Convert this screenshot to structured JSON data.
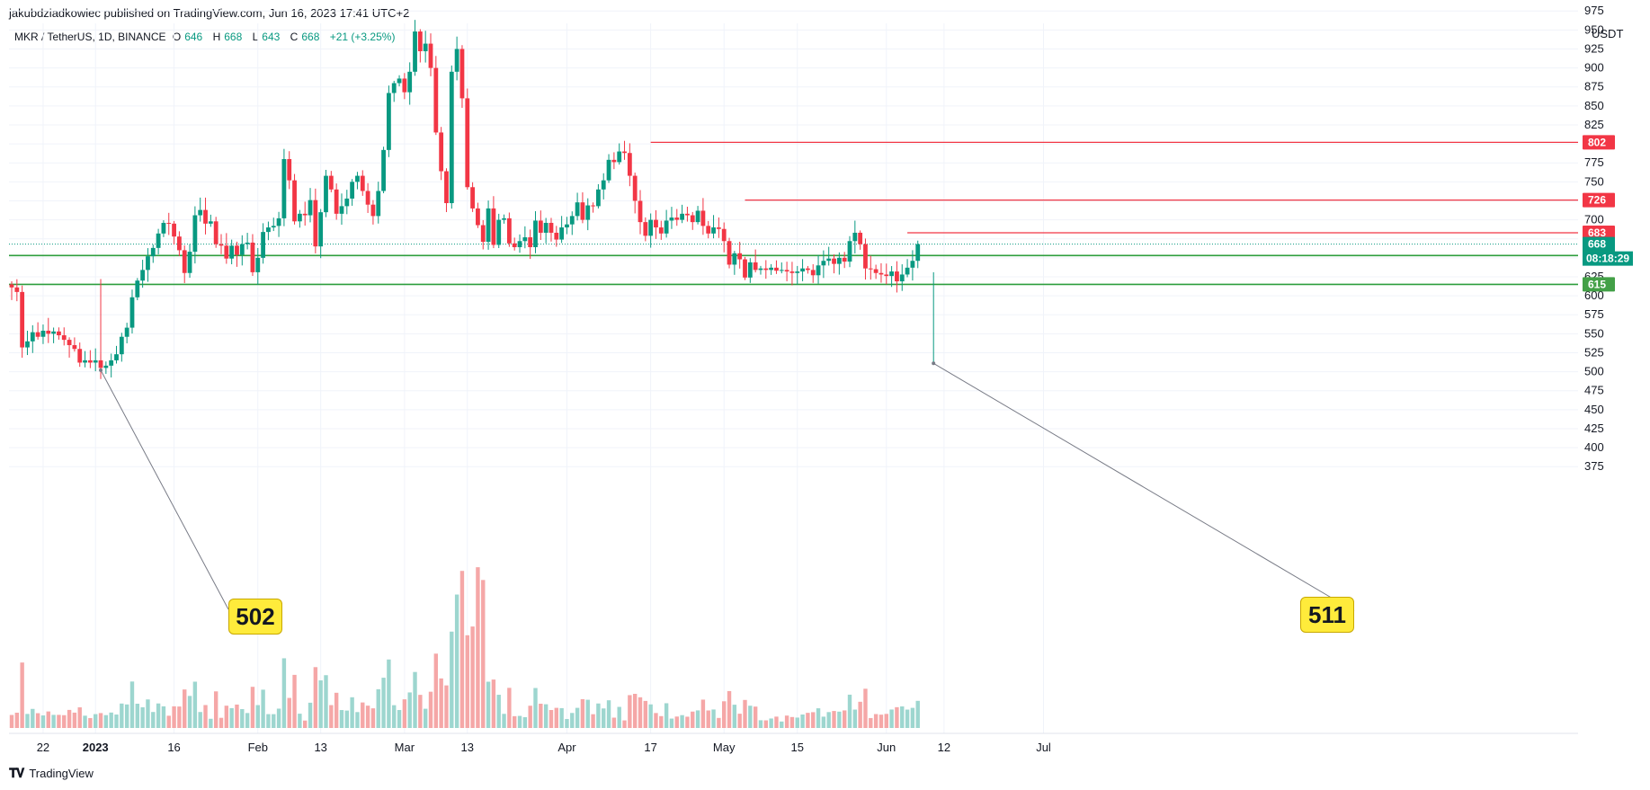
{
  "header": {
    "published_text": "jakubdziadkowiec published on TradingView.com, Jun 16, 2023 17:41 UTC+2"
  },
  "legend": {
    "symbol": "MKR / TetherUS, 1D, BINANCE",
    "open_label": "O",
    "open": "646",
    "high_label": "H",
    "high": "668",
    "low_label": "L",
    "low": "643",
    "close_label": "C",
    "close": "668",
    "change": "+21 (+3.25%)"
  },
  "footer": {
    "brand": "TradingView"
  },
  "annotations": {
    "low_left": "502",
    "low_right": "511"
  },
  "colors": {
    "up": "#089981",
    "down": "#f23645",
    "volume_up": "#9dd6cf",
    "volume_down": "#f5a7a7",
    "support": "#2e9e3e",
    "resistance": "#f23645",
    "callout": "#ffeb3b"
  },
  "chart_data": {
    "type": "candlestick",
    "symbol": "MKR / TetherUS",
    "interval": "1D",
    "exchange": "BINANCE",
    "currency_label": "USDT",
    "ylim": [
      352,
      986
    ],
    "y_ticks": [
      375,
      400,
      425,
      450,
      475,
      500,
      525,
      550,
      575,
      600,
      625,
      650,
      675,
      700,
      725,
      750,
      775,
      800,
      825,
      850,
      875,
      900,
      925,
      950,
      975
    ],
    "x_ticks": [
      {
        "date": "2022-12-22",
        "label": "22"
      },
      {
        "date": "2023-01-01",
        "label": "2023"
      },
      {
        "date": "2023-01-16",
        "label": "16"
      },
      {
        "date": "2023-02-01",
        "label": "Feb"
      },
      {
        "date": "2023-02-13",
        "label": "13"
      },
      {
        "date": "2023-03-01",
        "label": "Mar"
      },
      {
        "date": "2023-03-13",
        "label": "13"
      },
      {
        "date": "2023-04-01",
        "label": "Apr"
      },
      {
        "date": "2023-04-17",
        "label": "17"
      },
      {
        "date": "2023-05-01",
        "label": "May"
      },
      {
        "date": "2023-05-15",
        "label": "15"
      },
      {
        "date": "2023-06-01",
        "label": "Jun"
      },
      {
        "date": "2023-06-12",
        "label": "12"
      },
      {
        "date": "2023-07-01",
        "label": "Jul"
      }
    ],
    "first_date": "2022-12-16",
    "closes": [
      611,
      605,
      532,
      540,
      552,
      546,
      554,
      550,
      553,
      548,
      542,
      535,
      530,
      512,
      515,
      512,
      515,
      505,
      508,
      515,
      523,
      546,
      558,
      598,
      620,
      634,
      652,
      663,
      682,
      696,
      695,
      678,
      660,
      630,
      658,
      706,
      713,
      695,
      698,
      668,
      666,
      649,
      666,
      654,
      668,
      670,
      631,
      650,
      684,
      690,
      692,
      702,
      780,
      752,
      698,
      708,
      706,
      726,
      665,
      710,
      758,
      740,
      708,
      718,
      728,
      750,
      758,
      738,
      720,
      705,
      738,
      792,
      867,
      880,
      886,
      868,
      895,
      948,
      922,
      932,
      900,
      815,
      764,
      722,
      895,
      925,
      860,
      743,
      715,
      693,
      671,
      715,
      667,
      700,
      702,
      669,
      664,
      672,
      677,
      664,
      699,
      683,
      696,
      683,
      674,
      690,
      694,
      705,
      723,
      700,
      719,
      718,
      740,
      752,
      779,
      776,
      790,
      788,
      758,
      725,
      697,
      679,
      700,
      690,
      682,
      699,
      703,
      700,
      708,
      706,
      697,
      712,
      692,
      682,
      690,
      688,
      672,
      641,
      656,
      648,
      624,
      644,
      634,
      636,
      634,
      637,
      633,
      634,
      632,
      630,
      632,
      636,
      634,
      627,
      640,
      646,
      649,
      642,
      650,
      645,
      672,
      683,
      668,
      636,
      635,
      630,
      628,
      626,
      632,
      619,
      628,
      637,
      646,
      668
    ],
    "closes_note": "daily closes Dec 16 2022 – Jun 16 2023",
    "last_price": "668",
    "countdown": "08:18:29",
    "support_levels": [
      653,
      615
    ],
    "resistance_levels": [
      {
        "price": 802,
        "from": "2023-04-17"
      },
      {
        "price": 726,
        "from": "2023-05-05"
      },
      {
        "price": 683,
        "from": "2023-06-05"
      }
    ],
    "annotated_lows": [
      {
        "date": "2023-01-02",
        "price": 502,
        "label": "502"
      },
      {
        "date": "2023-06-10",
        "price": 511,
        "label": "511"
      }
    ],
    "legend": "none",
    "grid": true
  }
}
